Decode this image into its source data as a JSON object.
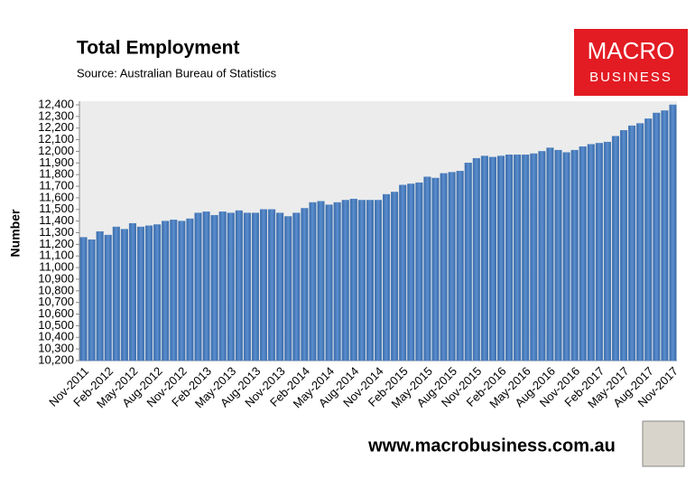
{
  "chart_data": {
    "type": "bar",
    "title": "Total Employment",
    "subtitle": "Source: Australian Bureau of Statistics",
    "y_label": "Number",
    "categories": [
      "Nov-2011",
      null,
      null,
      "Feb-2012",
      null,
      null,
      "May-2012",
      null,
      null,
      "Aug-2012",
      null,
      null,
      "Nov-2012",
      null,
      null,
      "Feb-2013",
      null,
      null,
      "May-2013",
      null,
      null,
      "Aug-2013",
      null,
      null,
      "Nov-2013",
      null,
      null,
      "Feb-2014",
      null,
      null,
      "May-2014",
      null,
      null,
      "Aug-2014",
      null,
      null,
      "Nov-2014",
      null,
      null,
      "Feb-2015",
      null,
      null,
      "May-2015",
      null,
      null,
      "Aug-2015",
      null,
      null,
      "Nov-2015",
      null,
      null,
      "Feb-2016",
      null,
      null,
      "May-2016",
      null,
      null,
      "Aug-2016",
      null,
      null,
      "Nov-2016",
      null,
      null,
      "Feb-2017",
      null,
      null,
      "May-2017",
      null,
      null,
      "Aug-2017",
      null,
      null,
      "Nov-2017"
    ],
    "values": [
      11260,
      11240,
      11310,
      11280,
      11350,
      11330,
      11380,
      11350,
      11360,
      11370,
      11400,
      11410,
      11400,
      11420,
      11470,
      11480,
      11450,
      11480,
      11470,
      11490,
      11470,
      11470,
      11500,
      11500,
      11470,
      11440,
      11470,
      11510,
      11560,
      11570,
      11540,
      11560,
      11580,
      11590,
      11580,
      11580,
      11580,
      11630,
      11650,
      11710,
      11720,
      11730,
      11780,
      11770,
      11810,
      11820,
      11830,
      11900,
      11940,
      11960,
      11950,
      11960,
      11970,
      11970,
      11970,
      11980,
      12000,
      12030,
      12010,
      11990,
      12010,
      12040,
      12060,
      12070,
      12080,
      12130,
      12180,
      12220,
      12240,
      12280,
      12330,
      12350,
      12400
    ],
    "color": "#4f81bd",
    "ylim": [
      10200,
      12400
    ],
    "yticks": [
      {
        "value": 10200,
        "label": "10,200"
      },
      {
        "value": 10300,
        "label": "10,300"
      },
      {
        "value": 10400,
        "label": "10,400"
      },
      {
        "value": 10500,
        "label": "10,500"
      },
      {
        "value": 10600,
        "label": "10,600"
      },
      {
        "value": 10700,
        "label": "10,700"
      },
      {
        "value": 10800,
        "label": "10,800"
      },
      {
        "value": 10900,
        "label": "10,900"
      },
      {
        "value": 11000,
        "label": "11,000"
      },
      {
        "value": 11100,
        "label": "11,100"
      },
      {
        "value": 11200,
        "label": "11,200"
      },
      {
        "value": 11300,
        "label": "11,300"
      },
      {
        "value": 11400,
        "label": "11,400"
      },
      {
        "value": 11500,
        "label": "11,500"
      },
      {
        "value": 11600,
        "label": "11,600"
      },
      {
        "value": 11700,
        "label": "11,700"
      },
      {
        "value": 11800,
        "label": "11,800"
      },
      {
        "value": 11900,
        "label": "11,900"
      },
      {
        "value": 12000,
        "label": "12,000"
      },
      {
        "value": 12100,
        "label": "12,100"
      },
      {
        "value": 12200,
        "label": "12,200"
      },
      {
        "value": 12300,
        "label": "12,300"
      },
      {
        "value": 12400,
        "label": "12,400"
      }
    ],
    "grid": false
  },
  "branding": {
    "logo_top": "MACRO",
    "logo_bottom": "BUSINESS",
    "url": "www.macrobusiness.com.au"
  }
}
